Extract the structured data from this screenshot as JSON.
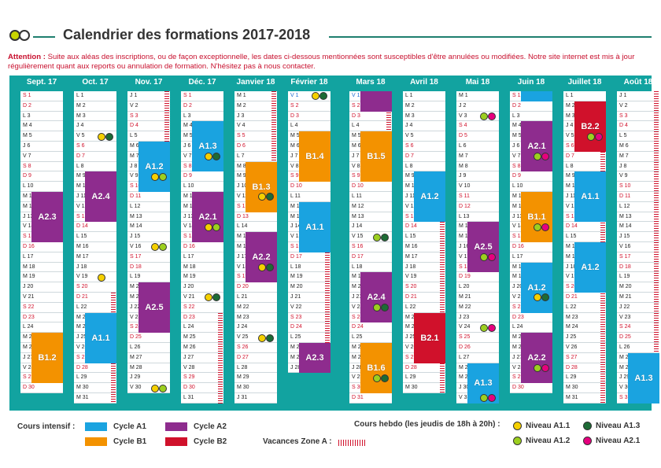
{
  "title": "Calendrier des formations 2017-2018",
  "attention_label": "Attention :",
  "attention_text": "Suite aux aléas des inscriptions, ou de façon exceptionnelle, les dates ci-dessous mentionnées sont susceptibles d'être annulées ou modifiées. Notre site internet est mis à jour régulièrement quant aux reports ou annulation de formation. N'hésitez pas à nous contacter.",
  "colors": {
    "A1": "#1aa3e0",
    "B1": "#f39200",
    "A2": "#8e2c8e",
    "B2": "#d0112b",
    "N_A11": "#f5d000",
    "N_A12": "#9ccf1f",
    "N_A13": "#1d6b35",
    "N_A21": "#e6007e"
  },
  "months": [
    {
      "name": "Sept. 17",
      "start": 5,
      "days": 30
    },
    {
      "name": "Oct. 17",
      "start": 0,
      "days": 31
    },
    {
      "name": "Nov. 17",
      "start": 3,
      "days": 30
    },
    {
      "name": "Déc. 17",
      "start": 5,
      "days": 31
    },
    {
      "name": "Janvier 18",
      "start": 1,
      "days": 31
    },
    {
      "name": "Février 18",
      "start": 4,
      "days": 28
    },
    {
      "name": "Mars 18",
      "start": 4,
      "days": 31
    },
    {
      "name": "Avril 18",
      "start": 0,
      "days": 30
    },
    {
      "name": "Mai 18",
      "start": 2,
      "days": 31
    },
    {
      "name": "Juin 18",
      "start": 5,
      "days": 30
    },
    {
      "name": "Juillet 18",
      "start": 0,
      "days": 31
    },
    {
      "name": "Août 18",
      "start": 3,
      "days": 31
    }
  ],
  "blocks": [
    {
      "m": 0,
      "from": 11,
      "to": 15,
      "label": "A2.3",
      "c": "A2"
    },
    {
      "m": 0,
      "from": 25,
      "to": 29,
      "label": "B1.2",
      "c": "B1"
    },
    {
      "m": 1,
      "from": 9,
      "to": 13,
      "label": "A2.4",
      "c": "A2"
    },
    {
      "m": 1,
      "from": 23,
      "to": 27,
      "label": "A1.1",
      "c": "A1"
    },
    {
      "m": 2,
      "from": 6,
      "to": 10,
      "label": "A1.2",
      "c": "A1"
    },
    {
      "m": 2,
      "from": 20,
      "to": 24,
      "label": "A2.5",
      "c": "A2"
    },
    {
      "m": 3,
      "from": 4,
      "to": 8,
      "label": "A1.3",
      "c": "A1"
    },
    {
      "m": 3,
      "from": 11,
      "to": 15,
      "label": "A2.1",
      "c": "A2"
    },
    {
      "m": 4,
      "from": 8,
      "to": 12,
      "label": "B1.3",
      "c": "B1"
    },
    {
      "m": 4,
      "from": 15,
      "to": 19,
      "label": "A2.2",
      "c": "A2"
    },
    {
      "m": 5,
      "from": 5,
      "to": 9,
      "label": "B1.4",
      "c": "B1"
    },
    {
      "m": 5,
      "from": 12,
      "to": 16,
      "label": "A1.1",
      "c": "A1"
    },
    {
      "m": 5,
      "from": 26,
      "to": 28,
      "label": "A2.3",
      "c": "A2"
    },
    {
      "m": 6,
      "from": 1,
      "to": 2,
      "label": "",
      "c": "A2"
    },
    {
      "m": 6,
      "from": 5,
      "to": 9,
      "label": "B1.5",
      "c": "B1"
    },
    {
      "m": 6,
      "from": 19,
      "to": 23,
      "label": "A2.4",
      "c": "A2"
    },
    {
      "m": 6,
      "from": 26,
      "to": 30,
      "label": "B1.6",
      "c": "B1"
    },
    {
      "m": 7,
      "from": 9,
      "to": 13,
      "label": "A1.2",
      "c": "A1"
    },
    {
      "m": 7,
      "from": 23,
      "to": 27,
      "label": "B2.1",
      "c": "B2"
    },
    {
      "m": 8,
      "from": 14,
      "to": 18,
      "label": "A2.5",
      "c": "A2"
    },
    {
      "m": 8,
      "from": 28,
      "to": 31,
      "label": "A1.3",
      "c": "A1"
    },
    {
      "m": 9,
      "from": 1,
      "to": 1,
      "label": "",
      "c": "A1"
    },
    {
      "m": 9,
      "from": 4,
      "to": 8,
      "label": "A2.1",
      "c": "A2"
    },
    {
      "m": 9,
      "from": 11,
      "to": 15,
      "label": "B1.1",
      "c": "B1"
    },
    {
      "m": 9,
      "from": 18,
      "to": 22,
      "label": "A1.2",
      "c": "A1"
    },
    {
      "m": 9,
      "from": 25,
      "to": 29,
      "label": "A2.2",
      "c": "A2"
    },
    {
      "m": 10,
      "from": 2,
      "to": 6,
      "label": "B2.2",
      "c": "B2"
    },
    {
      "m": 10,
      "from": 9,
      "to": 13,
      "label": "A1.1",
      "c": "A1"
    },
    {
      "m": 10,
      "from": 16,
      "to": 20,
      "label": "A1.2",
      "c": "A1"
    },
    {
      "m": 11,
      "from": 27,
      "to": 31,
      "label": "A1.3",
      "c": "A1"
    }
  ],
  "dots": [
    {
      "m": 1,
      "d": 5,
      "c": [
        "N_A11",
        "N_A13"
      ]
    },
    {
      "m": 1,
      "d": 19,
      "c": [
        "N_A11"
      ]
    },
    {
      "m": 2,
      "d": 9,
      "c": [
        "N_A11",
        "N_A12"
      ]
    },
    {
      "m": 2,
      "d": 16,
      "c": [
        "N_A11",
        "N_A12"
      ]
    },
    {
      "m": 2,
      "d": 30,
      "c": [
        "N_A11",
        "N_A12"
      ]
    },
    {
      "m": 3,
      "d": 7,
      "c": [
        "N_A11",
        "N_A13"
      ]
    },
    {
      "m": 3,
      "d": 14,
      "c": [
        "N_A11",
        "N_A12"
      ]
    },
    {
      "m": 3,
      "d": 21,
      "c": [
        "N_A11",
        "N_A13"
      ]
    },
    {
      "m": 4,
      "d": 11,
      "c": [
        "N_A11",
        "N_A13"
      ]
    },
    {
      "m": 4,
      "d": 18,
      "c": [
        "N_A11",
        "N_A13"
      ]
    },
    {
      "m": 4,
      "d": 25,
      "c": [
        "N_A11",
        "N_A13"
      ]
    },
    {
      "m": 5,
      "d": 1,
      "c": [
        "N_A11",
        "N_A13"
      ]
    },
    {
      "m": 6,
      "d": 15,
      "c": [
        "N_A12",
        "N_A13"
      ]
    },
    {
      "m": 6,
      "d": 22,
      "c": [
        "N_A12",
        "N_A13"
      ]
    },
    {
      "m": 6,
      "d": 29,
      "c": [
        "N_A12",
        "N_A13"
      ]
    },
    {
      "m": 8,
      "d": 3,
      "c": [
        "N_A12",
        "N_A21"
      ]
    },
    {
      "m": 8,
      "d": 17,
      "c": [
        "N_A12",
        "N_A21"
      ]
    },
    {
      "m": 8,
      "d": 24,
      "c": [
        "N_A12",
        "N_A21"
      ]
    },
    {
      "m": 8,
      "d": 31,
      "c": [
        "N_A12",
        "N_A21"
      ]
    },
    {
      "m": 9,
      "d": 7,
      "c": [
        "N_A12",
        "N_A21"
      ]
    },
    {
      "m": 9,
      "d": 14,
      "c": [
        "N_A12",
        "N_A21"
      ]
    },
    {
      "m": 9,
      "d": 21,
      "c": [
        "N_A11",
        "N_A13"
      ]
    },
    {
      "m": 9,
      "d": 28,
      "c": [
        "N_A12",
        "N_A21"
      ]
    },
    {
      "m": 10,
      "d": 5,
      "c": [
        "N_A12",
        "N_A21"
      ]
    }
  ],
  "vacations": [
    {
      "m": 1,
      "from": 21,
      "to": 31
    },
    {
      "m": 2,
      "from": 1,
      "to": 5
    },
    {
      "m": 3,
      "from": 23,
      "to": 31
    },
    {
      "m": 4,
      "from": 1,
      "to": 7
    },
    {
      "m": 5,
      "from": 17,
      "to": 28
    },
    {
      "m": 6,
      "from": 1,
      "to": 4
    },
    {
      "m": 7,
      "from": 14,
      "to": 30
    },
    {
      "m": 10,
      "from": 7,
      "to": 31
    },
    {
      "m": 11,
      "from": 1,
      "to": 31
    }
  ],
  "day_letters": [
    "L",
    "M",
    "M",
    "J",
    "V",
    "S",
    "D"
  ],
  "legend": {
    "cours_intensif": "Cours intensif :",
    "cycle_a1": "Cycle A1",
    "cycle_b1": "Cycle B1",
    "cycle_a2": "Cycle A2",
    "cycle_b2": "Cycle B2",
    "vacances": "Vacances Zone A :",
    "cours_hebdo": "Cours hebdo (les jeudis de 18h à 20h) :",
    "niveau_a11": "Niveau A1.1",
    "niveau_a12": "Niveau A1.2",
    "niveau_a13": "Niveau A1.3",
    "niveau_a21": "Niveau A2.1"
  }
}
